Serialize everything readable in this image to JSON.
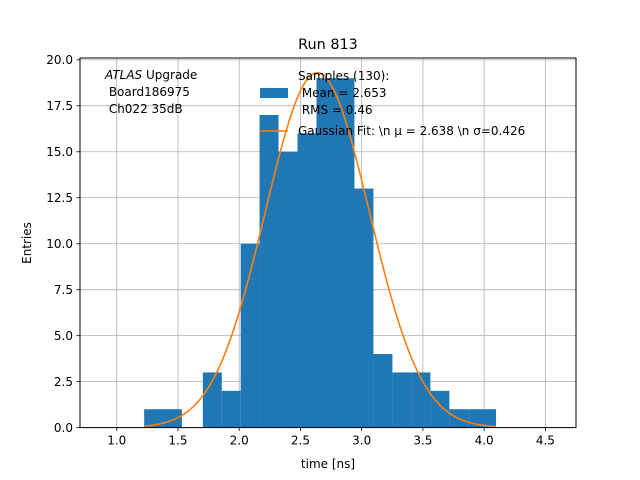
{
  "chart_data": {
    "type": "bar",
    "title": "Run 813",
    "xlabel": "time [ns]",
    "ylabel": "Entries",
    "xlim": [
      0.7,
      4.75
    ],
    "ylim": [
      0,
      20.1
    ],
    "grid": true,
    "xticks": [
      1.0,
      1.5,
      2.0,
      2.5,
      3.0,
      3.5,
      4.0,
      4.5
    ],
    "xtick_labels": [
      "1.0",
      "1.5",
      "2.0",
      "2.5",
      "3.0",
      "3.5",
      "4.0",
      "4.5"
    ],
    "yticks": [
      0,
      2.5,
      5,
      7.5,
      10,
      12.5,
      15,
      17.5,
      20
    ],
    "ytick_labels": [
      "0.0",
      "2.5",
      "5.0",
      "7.5",
      "10.0",
      "12.5",
      "15.0",
      "17.5",
      "20.0"
    ],
    "histogram": {
      "bin_edges": [
        1.224,
        1.378,
        1.532,
        1.703,
        1.858,
        2.012,
        2.166,
        2.321,
        2.476,
        2.631,
        2.786,
        2.941,
        3.096,
        3.251,
        3.406,
        3.561,
        3.716,
        3.871,
        4.097
      ],
      "counts": [
        1,
        1,
        0,
        3,
        2,
        10,
        17,
        15,
        16,
        19,
        19,
        13,
        4,
        3,
        3,
        2,
        1,
        1
      ],
      "color": "#1f77b4"
    },
    "fit": {
      "type": "gaussian",
      "mu": 2.638,
      "sigma": 0.426,
      "amplitude": 19.3,
      "x_range": [
        1.224,
        4.097
      ],
      "color": "#ff7f0e"
    },
    "legend": {
      "placement": "top-center",
      "entries": [
        {
          "label_lines": [
            "Samples (130):",
            " Mean = 2.653",
            " RMS = 0.46"
          ],
          "marker": "patch",
          "color": "#1f77b4"
        },
        {
          "label_lines": [
            "Gaussian Fit: \\n μ = 2.638 \\n σ=0.426"
          ],
          "marker": "line",
          "color": "#ff7f0e"
        }
      ]
    },
    "annotation": {
      "lines": [
        {
          "italic": "ATLAS",
          "rest": " Upgrade"
        },
        {
          "italic": "",
          "rest": " Board186975"
        },
        {
          "italic": "",
          "rest": " Ch022 35dB"
        }
      ]
    }
  }
}
